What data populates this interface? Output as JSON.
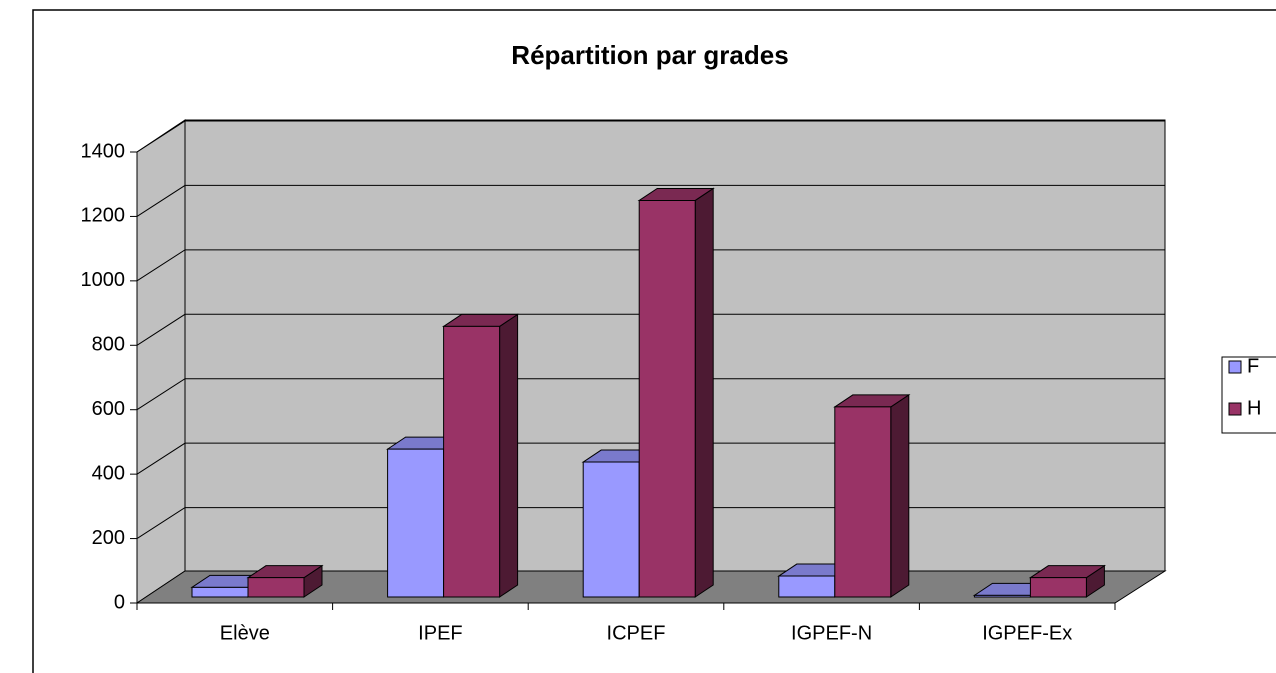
{
  "chart_data": {
    "type": "bar3d",
    "title": "Répartition par grades",
    "categories": [
      "Elève",
      "IPEF",
      "ICPEF",
      "IGPEF-N",
      "IGPEF-Ex"
    ],
    "series": [
      {
        "name": "F",
        "color": "#9999ff",
        "values": [
          30,
          459,
          419,
          65,
          5
        ]
      },
      {
        "name": "H",
        "color": "#993366",
        "values": [
          60,
          840,
          1231,
          590,
          60
        ]
      }
    ],
    "ylim": [
      0,
      1400
    ],
    "yticks": [
      0,
      200,
      400,
      600,
      800,
      1000,
      1200,
      1400
    ],
    "grid": true,
    "legend": "right"
  }
}
